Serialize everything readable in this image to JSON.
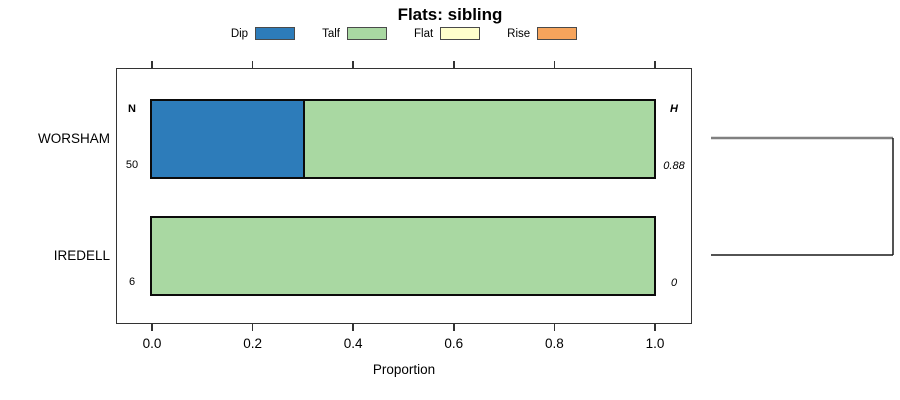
{
  "title": "Flats: sibling",
  "chart_data": {
    "type": "bar",
    "orientation": "horizontal",
    "stacked": true,
    "title": "Flats: sibling",
    "xlabel": "Proportion",
    "xlim": [
      0,
      1
    ],
    "x_tick_values": [
      0,
      0.2,
      0.4,
      0.6,
      0.8,
      1.0
    ],
    "x_tick_labels": [
      "0.0",
      "0.2",
      "0.4",
      "0.6",
      "0.8",
      "1.0"
    ],
    "grid": false,
    "legend_position": "top",
    "legend": [
      {
        "label": "Dip",
        "color": "#2d7cba"
      },
      {
        "label": "Talf",
        "color": "#a9d8a2"
      },
      {
        "label": "Flat",
        "color": "#ffffcc"
      },
      {
        "label": "Rise",
        "color": "#f6a45c"
      }
    ],
    "categories": [
      "WORSHAM",
      "IREDELL"
    ],
    "series": [
      {
        "name": "Dip",
        "values": [
          0.3,
          0
        ]
      },
      {
        "name": "Talf",
        "values": [
          0.7,
          1.0
        ]
      },
      {
        "name": "Flat",
        "values": [
          0,
          0
        ]
      },
      {
        "name": "Rise",
        "values": [
          0,
          0
        ]
      }
    ],
    "n_column": {
      "header": "N",
      "values": [
        "50",
        "6"
      ]
    },
    "h_column": {
      "header": "H",
      "values": [
        "0.88",
        "0"
      ]
    },
    "right_annotation": "dendrogram-bracket",
    "colors": {
      "bar_border": "#0b0b0b",
      "box_border": "#333333",
      "dendro_gray": "#808080",
      "dendro_black": "#1a1a1a"
    }
  }
}
